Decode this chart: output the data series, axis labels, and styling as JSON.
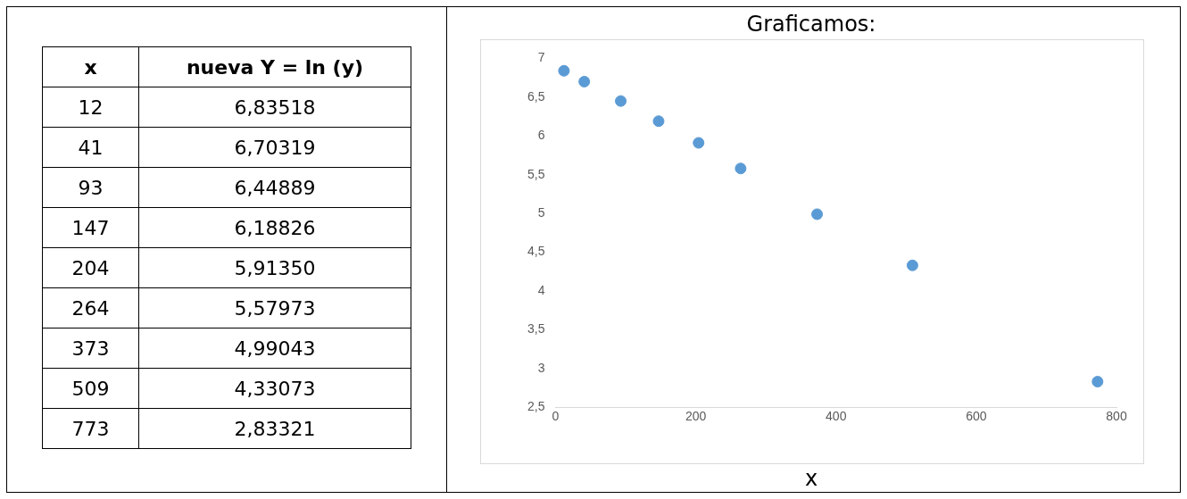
{
  "chart_data": {
    "type": "scatter",
    "title": "Graficamos:",
    "xlabel": "x",
    "annotations": [
      "x",
      "nueva Y = ln (y)",
      "12",
      "6,83518",
      "41",
      "6,70319",
      "93",
      "6,44889",
      "147",
      "6,18826",
      "204",
      "5,91350",
      "264",
      "5,57973",
      "373",
      "4,99043",
      "509",
      "4,33073",
      "773",
      "2,83321"
    ],
    "x": [
      12,
      41,
      93,
      147,
      204,
      264,
      373,
      509,
      773
    ],
    "values": [
      6.84,
      6.7,
      6.45,
      6.19,
      5.91,
      5.58,
      4.99,
      4.33,
      2.83
    ],
    "color": "#5b9bd5",
    "marker": "circle",
    "xlim": [
      0,
      800
    ],
    "xticks": [
      0,
      200,
      400,
      600,
      800
    ],
    "ylim": [
      2.5,
      7
    ],
    "yticks": [
      {
        "value": 2.5,
        "label": "2,5"
      },
      {
        "value": 3,
        "label": "3"
      },
      {
        "value": 3.5,
        "label": "3,5"
      },
      {
        "value": 4,
        "label": "4"
      },
      {
        "value": 4.5,
        "label": "4,5"
      },
      {
        "value": 5,
        "label": "5"
      },
      {
        "value": 5.5,
        "label": "5,5"
      },
      {
        "value": 6,
        "label": "6"
      },
      {
        "value": 6.5,
        "label": "6,5"
      },
      {
        "value": 7,
        "label": "7"
      }
    ],
    "grid": false
  }
}
